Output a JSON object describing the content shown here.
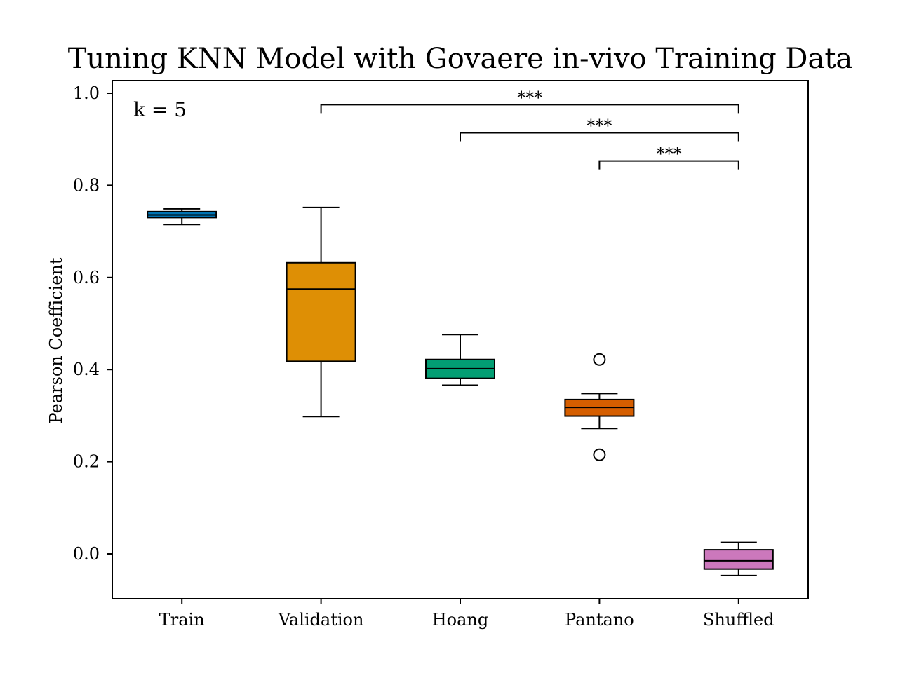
{
  "chart_data": {
    "type": "box",
    "title": "Tuning KNN Model with Govaere in-vivo Training Data",
    "xlabel": "",
    "ylabel": "Pearson Coefficient",
    "ylim": [
      -0.1,
      1.025
    ],
    "yticks": [
      "0.0",
      "0.2",
      "0.4",
      "0.6",
      "0.8",
      "1.0"
    ],
    "grid": false,
    "annotation": "k = 5",
    "categories": [
      "Train",
      "Validation",
      "Hoang",
      "Pantano",
      "Shuffled"
    ],
    "boxes": [
      {
        "category": "Train",
        "whisker_low": 0.715,
        "q1": 0.73,
        "median": 0.736,
        "q3": 0.743,
        "whisker_high": 0.749,
        "outliers": [],
        "color": "#0173b2"
      },
      {
        "category": "Validation",
        "whisker_low": 0.298,
        "q1": 0.418,
        "median": 0.575,
        "q3": 0.632,
        "whisker_high": 0.752,
        "outliers": [],
        "color": "#de8f05"
      },
      {
        "category": "Hoang",
        "whisker_low": 0.366,
        "q1": 0.381,
        "median": 0.402,
        "q3": 0.422,
        "whisker_high": 0.476,
        "outliers": [],
        "color": "#029e73"
      },
      {
        "category": "Pantano",
        "whisker_low": 0.272,
        "q1": 0.299,
        "median": 0.318,
        "q3": 0.335,
        "whisker_high": 0.348,
        "outliers": [
          0.422,
          0.215
        ],
        "color": "#d55e00"
      },
      {
        "category": "Shuffled",
        "whisker_low": -0.047,
        "q1": -0.033,
        "median": -0.015,
        "q3": 0.009,
        "whisker_high": 0.025,
        "outliers": [],
        "color": "#cc78bc"
      }
    ],
    "significance": [
      {
        "from": "Validation",
        "to": "Shuffled",
        "label": "***",
        "y": 0.975
      },
      {
        "from": "Hoang",
        "to": "Shuffled",
        "label": "***",
        "y": 0.914
      },
      {
        "from": "Pantano",
        "to": "Shuffled",
        "label": "***",
        "y": 0.853
      }
    ]
  }
}
